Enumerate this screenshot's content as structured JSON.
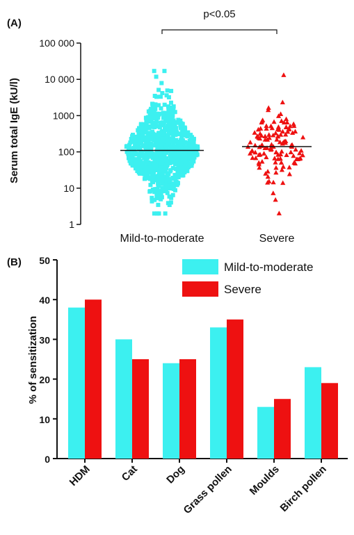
{
  "chart_data": [
    {
      "panel": "(A)",
      "type": "scatter",
      "ylabel": "Serum total IgE (kU/l)",
      "yscale": "log",
      "ylim": [
        1,
        100000
      ],
      "yticks": [
        1,
        10,
        100,
        1000,
        10000,
        100000
      ],
      "ytick_labels": [
        "1",
        "10",
        "100",
        "1000",
        "10 000",
        "100 000"
      ],
      "categories": [
        "Mild-to-moderate",
        "Severe"
      ],
      "series": [
        {
          "category": "Mild-to-moderate",
          "marker": "square",
          "color": "#3cf0f0",
          "median": 110,
          "min": 2,
          "max": 17000,
          "n_points_approx": 900
        },
        {
          "category": "Severe",
          "marker": "triangle",
          "color": "#ee1111",
          "median": 140,
          "min": 2,
          "max": 13000,
          "n_points_approx": 130
        }
      ],
      "annotation": {
        "text": "p<0.05",
        "between": [
          "Mild-to-moderate",
          "Severe"
        ]
      },
      "grid": false
    },
    {
      "panel": "(B)",
      "type": "bar",
      "ylabel": "% of sensitization",
      "ylim": [
        0,
        50
      ],
      "yticks": [
        0,
        10,
        20,
        30,
        40,
        50
      ],
      "categories": [
        "HDM",
        "Cat",
        "Dog",
        "Grass pollen",
        "Moulds",
        "Birch pollen"
      ],
      "series": [
        {
          "name": "Mild-to-moderate",
          "color": "#3cf0f0",
          "values": [
            38,
            30,
            24,
            33,
            13,
            23
          ]
        },
        {
          "name": "Severe",
          "color": "#ee1111",
          "values": [
            40,
            25,
            25,
            35,
            15,
            19
          ]
        }
      ],
      "legend": "top-right",
      "grid": false
    }
  ]
}
